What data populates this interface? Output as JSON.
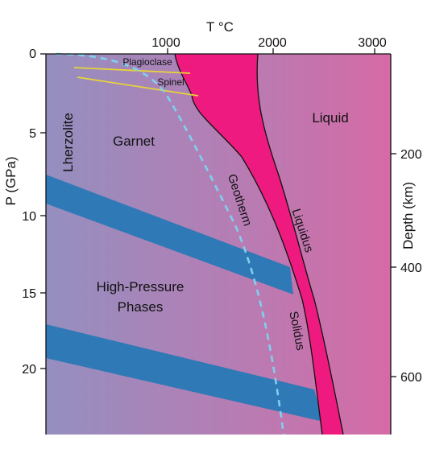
{
  "diagram": {
    "top_axis": {
      "title": "T °C",
      "ticks": [
        "1000",
        "2000",
        "3000"
      ]
    },
    "left_axis": {
      "title": "P (GPa)",
      "ticks": [
        "0",
        "5",
        "10",
        "15",
        "20"
      ]
    },
    "right_axis": {
      "title": "Depth (km)",
      "ticks": [
        "200",
        "400",
        "600"
      ]
    },
    "regions": {
      "liquid": "Liquid",
      "garnet": "Garnet",
      "lherzolite": "Lherzolite",
      "plagioclase": "Plagioclase",
      "spinel": "Spinel",
      "high_pressure_line1": "High-Pressure",
      "high_pressure_line2": "Phases"
    },
    "curves": {
      "geotherm": "Geotherm",
      "liquidus": "Liquidus",
      "solidus": "Solidus"
    },
    "colors": {
      "melt_band": "#ef1a7f",
      "phase_bands": "#2f79b6",
      "geotherm": "#7fd0ee",
      "plagioclase_spinel_boundaries": "#e6d33a",
      "background_left": "#948fbf",
      "background_right": "#d66aa5"
    }
  }
}
